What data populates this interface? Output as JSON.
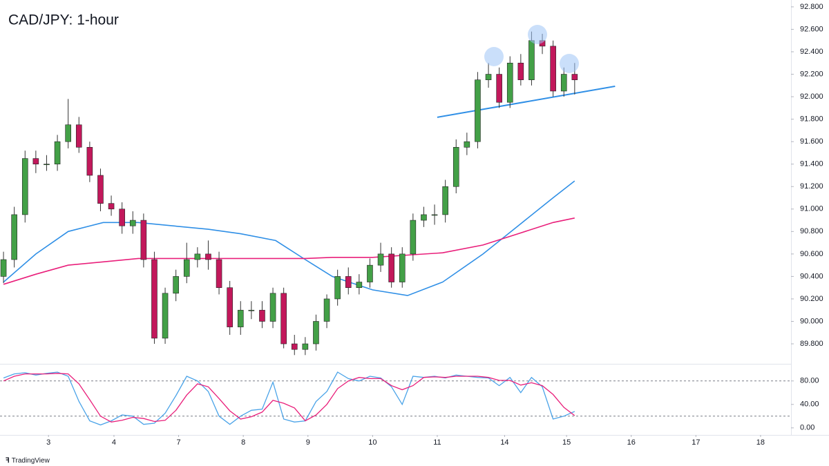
{
  "chart_data": [
    {
      "type": "candlestick",
      "title": "CAD/JPY: 1-hour",
      "x": [
        0,
        4,
        8,
        12,
        16,
        20,
        24,
        28,
        32,
        36,
        40,
        44,
        48,
        52,
        56,
        60,
        64,
        68,
        72,
        76,
        80,
        84,
        88,
        92,
        96,
        100,
        104,
        108,
        112,
        116,
        120,
        124,
        128,
        132,
        136,
        140,
        144,
        148,
        152,
        156,
        160,
        164,
        168,
        172,
        176,
        180,
        184,
        188,
        192,
        196,
        200,
        204,
        208,
        212
      ],
      "open": [
        90.4,
        90.55,
        90.95,
        91.45,
        91.4,
        91.4,
        91.6,
        91.75,
        91.55,
        91.3,
        91.05,
        91.0,
        90.85,
        90.9,
        90.55,
        89.85,
        90.25,
        90.4,
        90.55,
        90.6,
        90.55,
        90.3,
        89.95,
        90.1,
        90.1,
        90.0,
        90.25,
        89.8,
        89.75,
        89.8,
        90.0,
        90.2,
        90.4,
        90.3,
        90.35,
        90.5,
        90.6,
        90.35,
        90.6,
        90.9,
        90.95,
        90.95,
        91.2,
        91.55,
        91.6,
        92.15,
        92.2,
        91.95,
        92.3,
        92.15,
        92.5,
        92.45,
        92.05,
        92.2
      ],
      "high": [
        90.62,
        91.02,
        91.52,
        91.52,
        91.48,
        91.66,
        91.98,
        91.82,
        91.6,
        91.36,
        91.12,
        91.06,
        90.98,
        90.96,
        90.62,
        90.3,
        90.46,
        90.7,
        90.66,
        90.72,
        90.62,
        90.36,
        90.18,
        90.18,
        90.18,
        90.3,
        90.3,
        89.88,
        89.86,
        90.06,
        90.24,
        90.46,
        90.48,
        90.42,
        90.56,
        90.7,
        90.66,
        90.66,
        90.96,
        91.02,
        91.04,
        91.26,
        91.62,
        91.68,
        92.22,
        92.3,
        92.26,
        92.36,
        92.38,
        92.58,
        92.56,
        92.5,
        92.26,
        92.3
      ],
      "low": [
        90.34,
        90.48,
        90.88,
        91.32,
        91.34,
        91.34,
        91.54,
        91.5,
        91.24,
        90.98,
        90.94,
        90.78,
        90.78,
        90.48,
        89.8,
        89.8,
        90.18,
        90.34,
        90.48,
        90.46,
        90.24,
        89.88,
        89.88,
        90.02,
        89.94,
        89.94,
        89.76,
        89.7,
        89.7,
        89.74,
        89.94,
        90.14,
        90.24,
        90.24,
        90.3,
        90.44,
        90.3,
        90.3,
        90.54,
        90.84,
        90.86,
        90.88,
        91.14,
        91.48,
        91.54,
        92.08,
        91.9,
        91.9,
        92.1,
        92.1,
        92.38,
        92.0,
        92.0,
        92.02
      ],
      "close": [
        90.55,
        90.95,
        91.45,
        91.4,
        91.4,
        91.6,
        91.75,
        91.55,
        91.3,
        91.05,
        91.0,
        90.85,
        90.9,
        90.55,
        89.85,
        90.25,
        90.4,
        90.55,
        90.6,
        90.55,
        90.3,
        89.95,
        90.1,
        90.1,
        90.0,
        90.25,
        89.8,
        89.75,
        89.8,
        90.0,
        90.2,
        90.4,
        90.3,
        90.35,
        90.5,
        90.6,
        90.35,
        90.6,
        90.9,
        90.95,
        90.95,
        91.2,
        91.55,
        91.6,
        92.15,
        92.2,
        91.95,
        92.3,
        92.15,
        92.5,
        92.45,
        92.05,
        92.2,
        92.15
      ],
      "up_color": "#43a047",
      "down_color": "#c2185b",
      "wick_color": "#333333",
      "lines": [
        {
          "color": "#2f8fe6",
          "x": [
            0,
            12,
            24,
            37,
            50,
            63,
            76,
            88,
            101,
            112,
            122,
            137,
            150,
            163,
            178,
            191,
            204,
            212
          ],
          "values": [
            90.35,
            90.6,
            90.8,
            90.88,
            90.88,
            90.85,
            90.82,
            90.78,
            90.72,
            90.55,
            90.4,
            90.28,
            90.23,
            90.35,
            90.6,
            90.85,
            91.1,
            91.25
          ]
        },
        {
          "color": "#e91e7a",
          "x": [
            0,
            12,
            24,
            37,
            50,
            63,
            76,
            88,
            101,
            112,
            122,
            137,
            150,
            163,
            178,
            191,
            204,
            212
          ],
          "values": [
            90.33,
            90.42,
            90.5,
            90.53,
            90.56,
            90.56,
            90.56,
            90.56,
            90.56,
            90.56,
            90.57,
            90.57,
            90.59,
            90.61,
            90.68,
            90.78,
            90.88,
            90.92
          ]
        }
      ],
      "trendline": {
        "x": [
          161,
          227
        ],
        "y": [
          91.817,
          92.093
        ],
        "color": "#2f8fe6"
      },
      "xlim": [
        -1.3,
        292.3
      ],
      "xticks": [
        {
          "value": 16.7,
          "label": "3"
        },
        {
          "value": 41,
          "label": "4"
        },
        {
          "value": 65,
          "label": "7"
        },
        {
          "value": 89,
          "label": "8"
        },
        {
          "value": 113,
          "label": "9"
        },
        {
          "value": 137,
          "label": "10"
        },
        {
          "value": 161,
          "label": "11"
        },
        {
          "value": 186,
          "label": "14"
        },
        {
          "value": 209,
          "label": "15"
        },
        {
          "value": 233,
          "label": "16"
        },
        {
          "value": 257,
          "label": "17"
        },
        {
          "value": 281,
          "label": "18"
        }
      ],
      "ylim": [
        89.622,
        92.861
      ],
      "yticks": [
        {
          "value": 92.8,
          "label": "92.800"
        },
        {
          "value": 92.6,
          "label": "92.600"
        },
        {
          "value": 92.4,
          "label": "92.400"
        },
        {
          "value": 92.2,
          "label": "92.200"
        },
        {
          "value": 92.0,
          "label": "92.000"
        },
        {
          "value": 91.8,
          "label": "91.800"
        },
        {
          "value": 91.6,
          "label": "91.600"
        },
        {
          "value": 91.4,
          "label": "91.400"
        },
        {
          "value": 91.2,
          "label": "91.200"
        },
        {
          "value": 91.0,
          "label": "91.000"
        },
        {
          "value": 90.8,
          "label": "90.800"
        },
        {
          "value": 90.6,
          "label": "90.600"
        },
        {
          "value": 90.4,
          "label": "90.400"
        },
        {
          "value": 90.2,
          "label": "90.200"
        },
        {
          "value": 90.0,
          "label": "90.000"
        },
        {
          "value": 89.8,
          "label": "89.800"
        }
      ]
    },
    {
      "type": "line",
      "x": [
        0,
        4,
        8,
        12,
        16,
        20,
        24,
        28,
        32,
        36,
        40,
        44,
        48,
        52,
        56,
        60,
        64,
        68,
        72,
        76,
        80,
        84,
        88,
        92,
        96,
        100,
        104,
        108,
        112,
        116,
        120,
        124,
        128,
        132,
        136,
        140,
        144,
        148,
        152,
        156,
        160,
        164,
        168,
        172,
        176,
        180,
        184,
        188,
        192,
        196,
        200,
        204,
        208,
        212
      ],
      "series": [
        {
          "color": "#4aa3e8",
          "values": [
            85,
            92,
            94,
            90,
            93,
            95,
            88,
            45,
            12,
            5,
            12,
            22,
            20,
            6,
            8,
            25,
            55,
            88,
            80,
            62,
            20,
            6,
            20,
            30,
            32,
            78,
            15,
            10,
            12,
            45,
            62,
            95,
            84,
            80,
            88,
            85,
            70,
            40,
            88,
            86,
            88,
            85,
            90,
            88,
            86,
            85,
            72,
            86,
            60,
            86,
            70,
            15,
            20,
            28
          ]
        },
        {
          "color": "#e91e7a",
          "values": [
            80,
            88,
            92,
            92,
            92,
            93,
            92,
            75,
            48,
            20,
            10,
            13,
            18,
            16,
            11,
            13,
            30,
            56,
            75,
            70,
            50,
            29,
            15,
            19,
            27,
            47,
            42,
            34,
            12,
            22,
            40,
            67,
            80,
            86,
            84,
            84,
            72,
            65,
            72,
            86,
            87,
            86,
            88,
            88,
            88,
            86,
            81,
            81,
            73,
            77,
            72,
            57,
            35,
            21
          ]
        }
      ],
      "levels": [
        20,
        80
      ],
      "ylim": [
        -12,
        108
      ],
      "yticks": [
        {
          "value": 80,
          "label": "80.00"
        },
        {
          "value": 40,
          "label": "40.00"
        },
        {
          "value": 0,
          "label": "0.00"
        }
      ]
    }
  ],
  "brand": "TradingView"
}
